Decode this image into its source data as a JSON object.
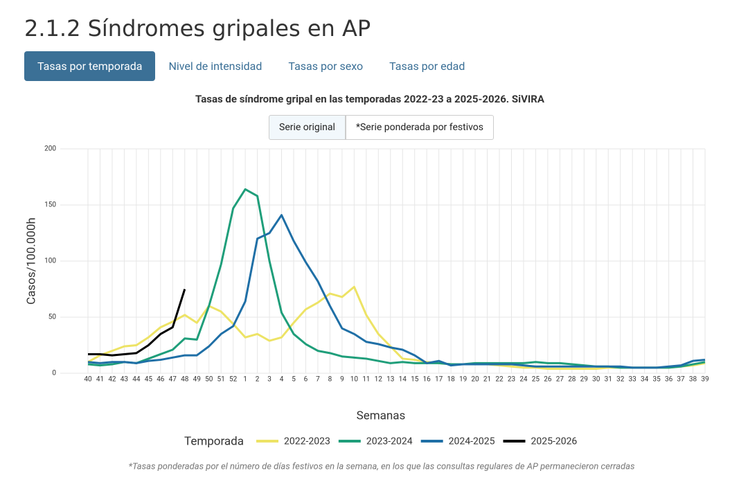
{
  "header": {
    "title": "2.1.2 Síndromes gripales en AP"
  },
  "tabs": [
    "Tasas por temporada",
    "Nivel de intensidad",
    "Tasas por sexo",
    "Tasas por edad"
  ],
  "buttons": [
    "Serie original",
    "*Serie ponderada por festivos"
  ],
  "footnote": "*Tasas ponderadas por el número de días festivos en la semana, en los que las consultas regulares de AP permanecieron cerradas",
  "chart_data": {
    "type": "line",
    "title": "Tasas de síndrome gripal en las temporadas 2022-23 a 2025-2026. SiVIRA",
    "x_label": "Semanas",
    "y_label": "Casos/100.000h",
    "legend_title": "Temporada",
    "categories": [
      "40",
      "41",
      "42",
      "43",
      "44",
      "45",
      "46",
      "47",
      "48",
      "49",
      "50",
      "51",
      "52",
      "1",
      "2",
      "3",
      "4",
      "5",
      "6",
      "7",
      "8",
      "9",
      "10",
      "11",
      "12",
      "13",
      "14",
      "15",
      "16",
      "17",
      "18",
      "19",
      "20",
      "21",
      "22",
      "23",
      "24",
      "25",
      "26",
      "27",
      "28",
      "29",
      "30",
      "31",
      "32",
      "33",
      "34",
      "35",
      "36",
      "37",
      "38",
      "39"
    ],
    "ylim": [
      0,
      200
    ],
    "yticks": [
      0,
      50,
      100,
      150,
      200
    ],
    "grid": true,
    "series": [
      {
        "name": "2022-2023",
        "color": "#ede365",
        "values": [
          10,
          16,
          20,
          24,
          25,
          32,
          41,
          46,
          52,
          45,
          60,
          55,
          44,
          32,
          35,
          29,
          32,
          45,
          57,
          63,
          71,
          68,
          77,
          52,
          35,
          24,
          13,
          12,
          10,
          9,
          8,
          8,
          8,
          8,
          7,
          6,
          5,
          5,
          4,
          4,
          4,
          4,
          4,
          5,
          5,
          5,
          5,
          5,
          5,
          6,
          7,
          9
        ]
      },
      {
        "name": "2023-2024",
        "color": "#1f9e7a",
        "values": [
          8,
          7,
          8,
          10,
          9,
          13,
          17,
          21,
          31,
          30,
          60,
          97,
          147,
          164,
          158,
          100,
          54,
          35,
          26,
          20,
          18,
          15,
          14,
          13,
          11,
          9,
          10,
          9,
          9,
          9,
          8,
          8,
          9,
          9,
          9,
          9,
          9,
          10,
          9,
          9,
          8,
          7,
          6,
          6,
          5,
          5,
          5,
          5,
          5,
          6,
          8,
          10
        ]
      },
      {
        "name": "2024-2025",
        "color": "#1f6fa6",
        "values": [
          10,
          9,
          10,
          10,
          9,
          11,
          12,
          14,
          16,
          16,
          24,
          35,
          42,
          64,
          120,
          125,
          141,
          118,
          99,
          82,
          60,
          40,
          35,
          28,
          26,
          23,
          21,
          16,
          9,
          11,
          7,
          8,
          8,
          8,
          8,
          8,
          7,
          6,
          6,
          6,
          6,
          6,
          6,
          6,
          6,
          5,
          5,
          5,
          6,
          7,
          11,
          12
        ]
      },
      {
        "name": "2025-2026",
        "color": "#000000",
        "values": [
          17,
          17,
          16,
          17,
          18,
          25,
          35,
          41,
          75,
          null,
          null,
          null,
          null,
          null,
          null,
          null,
          null,
          null,
          null,
          null,
          null,
          null,
          null,
          null,
          null,
          null,
          null,
          null,
          null,
          null,
          null,
          null,
          null,
          null,
          null,
          null,
          null,
          null,
          null,
          null,
          null,
          null,
          null,
          null,
          null,
          null,
          null,
          null,
          null,
          null,
          null,
          null
        ]
      }
    ]
  }
}
